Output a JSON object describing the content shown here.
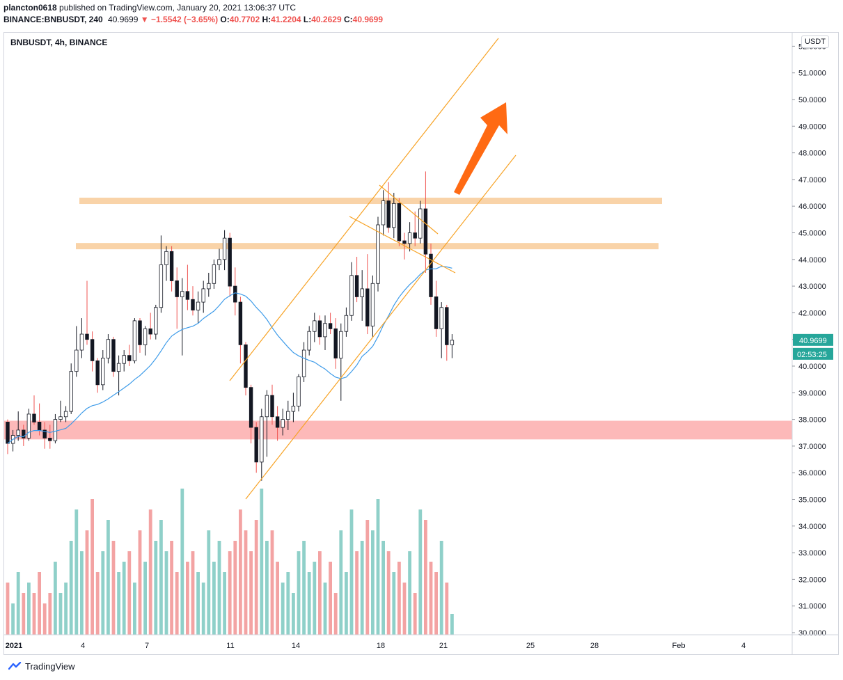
{
  "header": {
    "author": "plancton0618",
    "published_text": "published on TradingView.com, January 20, 2021 13:06:37 UTC",
    "symbol_line": "BINANCE:BNBUSDT, 240",
    "last": "40.9699",
    "change": "−1.5542 (−3.65%)",
    "open_label": "O:",
    "open": "40.7702",
    "high_label": "H:",
    "high": "41.2204",
    "low_label": "L:",
    "low": "40.2629",
    "close_label": "C:",
    "close": "40.9699"
  },
  "chart_title": "BNBUSDT, 4h, BINANCE",
  "price_unit": "USDT",
  "last_price_badge": "40.9699",
  "countdown_badge": "02:53:25",
  "footer_brand": "TradingView",
  "colors": {
    "up": "#26a69a",
    "down": "#ef5350",
    "up_volume": "#8fd0c9",
    "down_volume": "#f3a3a3",
    "ma": "#3d9be9",
    "channel": "#f7a326",
    "resistance_zone": "#f9d3a8",
    "support_zone": "#fdb5b5",
    "arrow": "#ff6a13",
    "badge_last": "#26a69a"
  },
  "chart_data": {
    "type": "candlestick",
    "timeframe": "4h",
    "x_ticks": [
      "2021",
      "4",
      "7",
      "11",
      "14",
      "18",
      "21",
      "25",
      "28",
      "Feb",
      "4"
    ],
    "y_ticks": [
      "30.0000",
      "31.0000",
      "32.0000",
      "33.0000",
      "34.0000",
      "35.0000",
      "36.0000",
      "37.0000",
      "38.0000",
      "39.0000",
      "40.0000",
      "41.0000",
      "42.0000",
      "43.0000",
      "44.0000",
      "45.0000",
      "46.0000",
      "47.0000",
      "48.0000",
      "49.0000",
      "50.0000",
      "51.0000",
      "52.0000"
    ],
    "ylim": [
      29.8,
      52.4
    ],
    "series": [
      {
        "o": 37.9,
        "h": 38.0,
        "l": 36.7,
        "c": 37.1
      },
      {
        "o": 37.1,
        "h": 37.6,
        "l": 36.8,
        "c": 37.4
      },
      {
        "o": 37.4,
        "h": 38.3,
        "l": 37.2,
        "c": 37.6
      },
      {
        "o": 37.6,
        "h": 37.8,
        "l": 37.0,
        "c": 37.3
      },
      {
        "o": 37.3,
        "h": 38.4,
        "l": 37.2,
        "c": 38.2
      },
      {
        "o": 38.2,
        "h": 38.9,
        "l": 37.8,
        "c": 37.9
      },
      {
        "o": 37.9,
        "h": 38.6,
        "l": 37.4,
        "c": 37.6
      },
      {
        "o": 37.6,
        "h": 37.9,
        "l": 36.9,
        "c": 37.3
      },
      {
        "o": 37.3,
        "h": 37.8,
        "l": 36.9,
        "c": 37.2
      },
      {
        "o": 37.2,
        "h": 38.2,
        "l": 37.1,
        "c": 38.0
      },
      {
        "o": 38.0,
        "h": 38.7,
        "l": 37.9,
        "c": 38.1
      },
      {
        "o": 38.1,
        "h": 38.5,
        "l": 37.9,
        "c": 38.3
      },
      {
        "o": 38.3,
        "h": 40.1,
        "l": 38.2,
        "c": 39.8
      },
      {
        "o": 39.8,
        "h": 41.5,
        "l": 39.6,
        "c": 40.6
      },
      {
        "o": 40.6,
        "h": 41.8,
        "l": 40.3,
        "c": 41.2
      },
      {
        "o": 41.2,
        "h": 43.2,
        "l": 40.8,
        "c": 41.0
      },
      {
        "o": 41.0,
        "h": 41.3,
        "l": 39.8,
        "c": 40.2
      },
      {
        "o": 40.2,
        "h": 40.3,
        "l": 39.0,
        "c": 39.3
      },
      {
        "o": 39.3,
        "h": 40.6,
        "l": 39.1,
        "c": 40.3
      },
      {
        "o": 40.3,
        "h": 41.2,
        "l": 40.1,
        "c": 41.0
      },
      {
        "o": 41.0,
        "h": 41.1,
        "l": 39.6,
        "c": 39.8
      },
      {
        "o": 39.8,
        "h": 40.4,
        "l": 38.9,
        "c": 40.1
      },
      {
        "o": 40.1,
        "h": 40.6,
        "l": 39.8,
        "c": 40.4
      },
      {
        "o": 40.4,
        "h": 40.8,
        "l": 40.0,
        "c": 40.2
      },
      {
        "o": 40.2,
        "h": 41.8,
        "l": 40.1,
        "c": 41.7
      },
      {
        "o": 41.7,
        "h": 41.8,
        "l": 40.5,
        "c": 40.8
      },
      {
        "o": 40.8,
        "h": 41.5,
        "l": 40.4,
        "c": 41.4
      },
      {
        "o": 41.4,
        "h": 42.0,
        "l": 41.0,
        "c": 41.2
      },
      {
        "o": 41.2,
        "h": 42.3,
        "l": 41.0,
        "c": 42.2
      },
      {
        "o": 42.2,
        "h": 44.9,
        "l": 42.0,
        "c": 43.8
      },
      {
        "o": 43.8,
        "h": 44.5,
        "l": 43.2,
        "c": 44.3
      },
      {
        "o": 44.3,
        "h": 44.5,
        "l": 42.8,
        "c": 43.2
      },
      {
        "o": 43.2,
        "h": 43.7,
        "l": 41.4,
        "c": 42.6
      },
      {
        "o": 42.6,
        "h": 43.3,
        "l": 40.4,
        "c": 42.8
      },
      {
        "o": 42.8,
        "h": 43.8,
        "l": 42.1,
        "c": 42.5
      },
      {
        "o": 42.5,
        "h": 43.0,
        "l": 41.9,
        "c": 42.1
      },
      {
        "o": 42.1,
        "h": 42.8,
        "l": 41.6,
        "c": 42.4
      },
      {
        "o": 42.4,
        "h": 43.2,
        "l": 42.0,
        "c": 42.9
      },
      {
        "o": 42.9,
        "h": 43.5,
        "l": 42.6,
        "c": 43.1
      },
      {
        "o": 43.1,
        "h": 44.0,
        "l": 42.9,
        "c": 43.8
      },
      {
        "o": 43.8,
        "h": 44.4,
        "l": 43.6,
        "c": 44.0
      },
      {
        "o": 44.0,
        "h": 45.1,
        "l": 43.6,
        "c": 44.8
      },
      {
        "o": 44.8,
        "h": 45.0,
        "l": 42.6,
        "c": 43.0
      },
      {
        "o": 43.0,
        "h": 43.7,
        "l": 41.9,
        "c": 42.4
      },
      {
        "o": 42.4,
        "h": 42.6,
        "l": 40.1,
        "c": 40.8
      },
      {
        "o": 40.8,
        "h": 40.9,
        "l": 38.9,
        "c": 39.2
      },
      {
        "o": 39.2,
        "h": 39.3,
        "l": 37.1,
        "c": 37.7
      },
      {
        "o": 37.7,
        "h": 37.9,
        "l": 36.0,
        "c": 36.4
      },
      {
        "o": 36.4,
        "h": 38.4,
        "l": 35.7,
        "c": 38.1
      },
      {
        "o": 38.1,
        "h": 39.1,
        "l": 36.6,
        "c": 38.9
      },
      {
        "o": 38.9,
        "h": 39.3,
        "l": 37.8,
        "c": 38.1
      },
      {
        "o": 38.1,
        "h": 38.5,
        "l": 37.2,
        "c": 37.7
      },
      {
        "o": 37.7,
        "h": 38.4,
        "l": 37.4,
        "c": 38.0
      },
      {
        "o": 38.0,
        "h": 38.7,
        "l": 37.6,
        "c": 38.3
      },
      {
        "o": 38.3,
        "h": 39.0,
        "l": 37.9,
        "c": 38.5
      },
      {
        "o": 38.5,
        "h": 39.7,
        "l": 38.3,
        "c": 39.6
      },
      {
        "o": 39.6,
        "h": 40.9,
        "l": 39.4,
        "c": 40.6
      },
      {
        "o": 40.6,
        "h": 41.5,
        "l": 40.4,
        "c": 41.3
      },
      {
        "o": 41.3,
        "h": 42.0,
        "l": 40.9,
        "c": 41.7
      },
      {
        "o": 41.7,
        "h": 41.9,
        "l": 40.8,
        "c": 41.1
      },
      {
        "o": 41.1,
        "h": 41.9,
        "l": 40.6,
        "c": 41.6
      },
      {
        "o": 41.6,
        "h": 42.0,
        "l": 41.2,
        "c": 41.4
      },
      {
        "o": 41.4,
        "h": 41.8,
        "l": 39.9,
        "c": 40.3
      },
      {
        "o": 40.3,
        "h": 41.6,
        "l": 38.7,
        "c": 41.3
      },
      {
        "o": 41.3,
        "h": 42.2,
        "l": 41.1,
        "c": 41.9
      },
      {
        "o": 41.9,
        "h": 43.9,
        "l": 41.7,
        "c": 43.4
      },
      {
        "o": 43.4,
        "h": 44.1,
        "l": 42.4,
        "c": 42.6
      },
      {
        "o": 42.6,
        "h": 43.6,
        "l": 41.7,
        "c": 42.9
      },
      {
        "o": 42.9,
        "h": 44.2,
        "l": 41.2,
        "c": 41.5
      },
      {
        "o": 41.5,
        "h": 43.4,
        "l": 41.1,
        "c": 43.1
      },
      {
        "o": 43.1,
        "h": 45.6,
        "l": 42.8,
        "c": 45.3
      },
      {
        "o": 45.3,
        "h": 46.6,
        "l": 44.9,
        "c": 46.2
      },
      {
        "o": 46.2,
        "h": 46.9,
        "l": 45.0,
        "c": 45.2
      },
      {
        "o": 45.2,
        "h": 46.5,
        "l": 44.8,
        "c": 46.1
      },
      {
        "o": 46.1,
        "h": 46.3,
        "l": 44.5,
        "c": 44.7
      },
      {
        "o": 44.7,
        "h": 45.0,
        "l": 44.0,
        "c": 44.6
      },
      {
        "o": 44.6,
        "h": 45.4,
        "l": 44.3,
        "c": 45.0
      },
      {
        "o": 45.0,
        "h": 45.8,
        "l": 44.5,
        "c": 44.8
      },
      {
        "o": 44.8,
        "h": 46.2,
        "l": 44.6,
        "c": 45.9
      },
      {
        "o": 45.9,
        "h": 47.3,
        "l": 43.5,
        "c": 44.2
      },
      {
        "o": 44.2,
        "h": 44.6,
        "l": 42.3,
        "c": 42.6
      },
      {
        "o": 42.6,
        "h": 43.2,
        "l": 41.1,
        "c": 41.4
      },
      {
        "o": 41.4,
        "h": 42.4,
        "l": 40.3,
        "c": 42.2
      },
      {
        "o": 42.2,
        "h": 42.3,
        "l": 40.2,
        "c": 40.8
      },
      {
        "o": 40.8,
        "h": 41.2,
        "l": 40.3,
        "c": 40.97
      }
    ],
    "volume": [
      5,
      3,
      6,
      4,
      5,
      4,
      6,
      3,
      4,
      7,
      4,
      5,
      9,
      12,
      8,
      10,
      13,
      6,
      8,
      11,
      9,
      6,
      7,
      8,
      5,
      10,
      7,
      12,
      9,
      11,
      8,
      9,
      6,
      14,
      7,
      8,
      6,
      5,
      10,
      7,
      9,
      6,
      8,
      9,
      12,
      10,
      8,
      11,
      14,
      9,
      10,
      7,
      5,
      6,
      4,
      8,
      9,
      6,
      7,
      8,
      5,
      7,
      4,
      10,
      6,
      12,
      8,
      9,
      11,
      10,
      13,
      9,
      8,
      6,
      7,
      5,
      8,
      4,
      12,
      11,
      7,
      6,
      9,
      5,
      2
    ],
    "ma_label": "MA",
    "annotations": {
      "resistance_levels": [
        46.2,
        44.5
      ],
      "support_zone": [
        37.25,
        37.95
      ],
      "channel": "ascending",
      "target_arrow": "up"
    }
  }
}
